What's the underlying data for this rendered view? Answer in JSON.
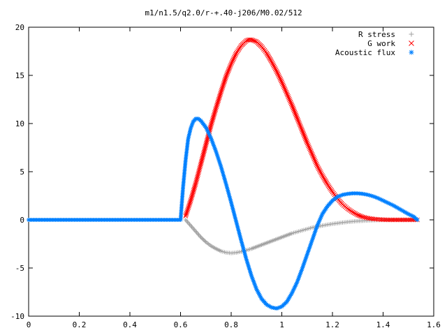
{
  "chart_data": {
    "type": "scatter",
    "title": "m1/n1.5/q2.0/r-+.40-j206/M0.02/512",
    "xlabel": "",
    "ylabel": "",
    "xlim": [
      0,
      1.6
    ],
    "ylim": [
      -10,
      20
    ],
    "x_ticks": [
      "0",
      "0.2",
      "0.4",
      "0.6",
      "0.8",
      "1",
      "1.2",
      "1.4",
      "1.6"
    ],
    "y_ticks": [
      "-10",
      "-5",
      "0",
      "5",
      "10",
      "15",
      "20"
    ],
    "grid": false,
    "legend_position": "top-right",
    "series": [
      {
        "name": "R stress",
        "marker": "plus",
        "color": "#a0a0a0",
        "points": [
          [
            0.62,
            0
          ],
          [
            0.64,
            -0.6
          ],
          [
            0.66,
            -1.2
          ],
          [
            0.68,
            -1.8
          ],
          [
            0.7,
            -2.3
          ],
          [
            0.72,
            -2.7
          ],
          [
            0.74,
            -3.0
          ],
          [
            0.76,
            -3.25
          ],
          [
            0.78,
            -3.4
          ],
          [
            0.8,
            -3.45
          ],
          [
            0.82,
            -3.4
          ],
          [
            0.84,
            -3.3
          ],
          [
            0.86,
            -3.15
          ],
          [
            0.88,
            -3.0
          ],
          [
            0.9,
            -2.8
          ],
          [
            0.92,
            -2.6
          ],
          [
            0.94,
            -2.4
          ],
          [
            0.96,
            -2.2
          ],
          [
            0.98,
            -2.0
          ],
          [
            1.0,
            -1.8
          ],
          [
            1.02,
            -1.6
          ],
          [
            1.04,
            -1.4
          ],
          [
            1.06,
            -1.25
          ],
          [
            1.08,
            -1.1
          ],
          [
            1.1,
            -0.95
          ],
          [
            1.12,
            -0.8
          ],
          [
            1.14,
            -0.7
          ],
          [
            1.16,
            -0.6
          ],
          [
            1.18,
            -0.5
          ],
          [
            1.2,
            -0.42
          ],
          [
            1.22,
            -0.35
          ],
          [
            1.24,
            -0.28
          ],
          [
            1.26,
            -0.22
          ],
          [
            1.28,
            -0.17
          ],
          [
            1.3,
            -0.13
          ],
          [
            1.32,
            -0.1
          ],
          [
            1.34,
            -0.07
          ],
          [
            1.36,
            -0.05
          ],
          [
            1.38,
            -0.03
          ],
          [
            1.4,
            -0.02
          ],
          [
            1.42,
            -0.01
          ],
          [
            1.44,
            0
          ],
          [
            1.46,
            0
          ],
          [
            1.48,
            0
          ],
          [
            1.5,
            0
          ],
          [
            1.52,
            0
          ],
          [
            1.535,
            0
          ]
        ]
      },
      {
        "name": "G work",
        "marker": "cross",
        "color": "#ff0000",
        "points": [
          [
            0.62,
            0.4
          ],
          [
            0.64,
            2.0
          ],
          [
            0.66,
            3.8
          ],
          [
            0.68,
            5.8
          ],
          [
            0.7,
            7.8
          ],
          [
            0.72,
            9.8
          ],
          [
            0.74,
            11.6
          ],
          [
            0.76,
            13.3
          ],
          [
            0.78,
            14.9
          ],
          [
            0.8,
            16.2
          ],
          [
            0.82,
            17.3
          ],
          [
            0.84,
            18.1
          ],
          [
            0.86,
            18.6
          ],
          [
            0.87,
            18.7
          ],
          [
            0.88,
            18.7
          ],
          [
            0.9,
            18.5
          ],
          [
            0.92,
            18.0
          ],
          [
            0.94,
            17.3
          ],
          [
            0.96,
            16.4
          ],
          [
            0.98,
            15.4
          ],
          [
            1.0,
            14.3
          ],
          [
            1.02,
            13.1
          ],
          [
            1.04,
            11.9
          ],
          [
            1.06,
            10.6
          ],
          [
            1.08,
            9.3
          ],
          [
            1.1,
            8.0
          ],
          [
            1.12,
            6.8
          ],
          [
            1.14,
            5.6
          ],
          [
            1.16,
            4.6
          ],
          [
            1.18,
            3.7
          ],
          [
            1.2,
            2.9
          ],
          [
            1.22,
            2.2
          ],
          [
            1.24,
            1.6
          ],
          [
            1.26,
            1.15
          ],
          [
            1.28,
            0.8
          ],
          [
            1.3,
            0.5
          ],
          [
            1.32,
            0.3
          ],
          [
            1.34,
            0.18
          ],
          [
            1.36,
            0.1
          ],
          [
            1.38,
            0.05
          ],
          [
            1.4,
            0.02
          ],
          [
            1.42,
            0
          ],
          [
            1.44,
            0
          ],
          [
            1.46,
            0
          ],
          [
            1.48,
            0
          ],
          [
            1.5,
            0
          ],
          [
            1.52,
            0
          ],
          [
            1.535,
            0
          ]
        ]
      },
      {
        "name": "Acoustic flux",
        "marker": "star",
        "color": "#0080ff",
        "points": [
          [
            0.0,
            0
          ],
          [
            0.05,
            0
          ],
          [
            0.1,
            0
          ],
          [
            0.15,
            0
          ],
          [
            0.2,
            0
          ],
          [
            0.25,
            0
          ],
          [
            0.3,
            0
          ],
          [
            0.35,
            0
          ],
          [
            0.4,
            0
          ],
          [
            0.45,
            0
          ],
          [
            0.5,
            0
          ],
          [
            0.55,
            0
          ],
          [
            0.6,
            0
          ],
          [
            0.61,
            3.4
          ],
          [
            0.62,
            6.2
          ],
          [
            0.625,
            7.3
          ],
          [
            0.63,
            8.4
          ],
          [
            0.64,
            9.5
          ],
          [
            0.65,
            10.2
          ],
          [
            0.66,
            10.5
          ],
          [
            0.67,
            10.5
          ],
          [
            0.68,
            10.3
          ],
          [
            0.7,
            9.6
          ],
          [
            0.72,
            8.5
          ],
          [
            0.74,
            7.1
          ],
          [
            0.76,
            5.5
          ],
          [
            0.78,
            3.7
          ],
          [
            0.8,
            1.8
          ],
          [
            0.82,
            -0.2
          ],
          [
            0.84,
            -2.2
          ],
          [
            0.86,
            -4.1
          ],
          [
            0.88,
            -5.8
          ],
          [
            0.9,
            -7.2
          ],
          [
            0.92,
            -8.2
          ],
          [
            0.94,
            -8.8
          ],
          [
            0.96,
            -9.1
          ],
          [
            0.98,
            -9.2
          ],
          [
            1.0,
            -9.0
          ],
          [
            1.02,
            -8.5
          ],
          [
            1.04,
            -7.6
          ],
          [
            1.06,
            -6.5
          ],
          [
            1.08,
            -5.1
          ],
          [
            1.1,
            -3.6
          ],
          [
            1.12,
            -2.1
          ],
          [
            1.14,
            -0.6
          ],
          [
            1.16,
            0.6
          ],
          [
            1.18,
            1.4
          ],
          [
            1.2,
            2.0
          ],
          [
            1.22,
            2.4
          ],
          [
            1.24,
            2.6
          ],
          [
            1.26,
            2.7
          ],
          [
            1.28,
            2.75
          ],
          [
            1.3,
            2.75
          ],
          [
            1.32,
            2.7
          ],
          [
            1.34,
            2.6
          ],
          [
            1.36,
            2.45
          ],
          [
            1.38,
            2.25
          ],
          [
            1.4,
            2.0
          ],
          [
            1.42,
            1.75
          ],
          [
            1.44,
            1.5
          ],
          [
            1.46,
            1.2
          ],
          [
            1.48,
            0.9
          ],
          [
            1.5,
            0.6
          ],
          [
            1.52,
            0.35
          ],
          [
            1.535,
            0
          ]
        ]
      }
    ]
  }
}
